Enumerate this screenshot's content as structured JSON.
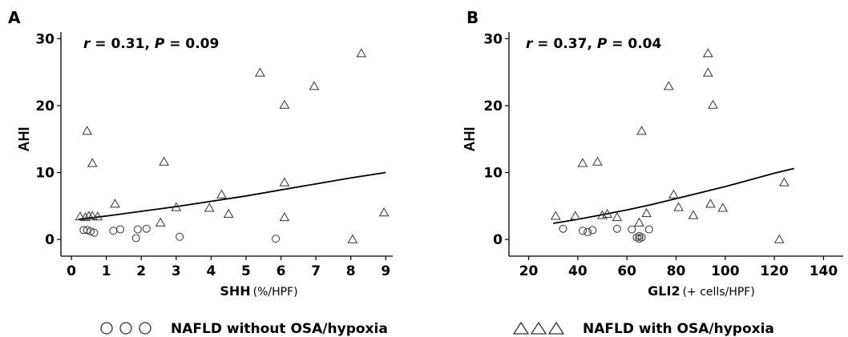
{
  "chart_data": [
    {
      "panel": "A",
      "type": "scatter",
      "stat": {
        "r": "0.31",
        "P": "0.09"
      },
      "xlabel": "SHH",
      "xlabel_unit": "(%/HPF)",
      "ylabel": "AHI",
      "xlim": [
        -0.3,
        9.2
      ],
      "ylim": [
        -2.5,
        31
      ],
      "xticks": [
        0,
        1,
        2,
        3,
        4,
        5,
        6,
        7,
        8,
        9
      ],
      "yticks": [
        0,
        10,
        20,
        30
      ],
      "axis_lines": [
        "left",
        "bottom"
      ],
      "grid": false,
      "series": [
        {
          "marker": "circle",
          "points": [
            [
              0.35,
              1.4
            ],
            [
              0.45,
              1.4
            ],
            [
              0.55,
              1.2
            ],
            [
              0.65,
              1.0
            ],
            [
              1.2,
              1.3
            ],
            [
              1.4,
              1.5
            ],
            [
              1.85,
              0.2
            ],
            [
              1.9,
              1.5
            ],
            [
              2.15,
              1.6
            ],
            [
              3.1,
              0.4
            ],
            [
              5.85,
              0.1
            ]
          ]
        },
        {
          "marker": "triangle",
          "points": [
            [
              0.25,
              3.4
            ],
            [
              0.4,
              3.3
            ],
            [
              0.45,
              16.2
            ],
            [
              0.5,
              3.5
            ],
            [
              0.6,
              3.5
            ],
            [
              0.6,
              11.4
            ],
            [
              0.75,
              3.4
            ],
            [
              1.25,
              5.3
            ],
            [
              2.55,
              2.5
            ],
            [
              2.65,
              11.6
            ],
            [
              3.0,
              4.8
            ],
            [
              3.95,
              4.7
            ],
            [
              4.3,
              6.7
            ],
            [
              4.5,
              3.8
            ],
            [
              5.4,
              24.9
            ],
            [
              6.1,
              20.1
            ],
            [
              6.1,
              3.3
            ],
            [
              6.1,
              8.5
            ],
            [
              6.95,
              22.9
            ],
            [
              8.05,
              0.0
            ],
            [
              8.3,
              27.8
            ],
            [
              8.95,
              4.0
            ]
          ]
        }
      ],
      "trend": [
        [
          0.2,
          3.0
        ],
        [
          1,
          3.5
        ],
        [
          2,
          4.2
        ],
        [
          3,
          4.9
        ],
        [
          4,
          5.7
        ],
        [
          5,
          6.5
        ],
        [
          6,
          7.4
        ],
        [
          7,
          8.3
        ],
        [
          8,
          9.2
        ],
        [
          9,
          10.0
        ]
      ]
    },
    {
      "panel": "B",
      "type": "scatter",
      "stat": {
        "r": "0.37",
        "P": "0.04"
      },
      "xlabel": "GLI2",
      "xlabel_unit": "(+ cells/HPF)",
      "ylabel": "AHI",
      "xlim": [
        12,
        148
      ],
      "ylim": [
        -2.5,
        31
      ],
      "xticks": [
        20,
        40,
        60,
        80,
        100,
        120,
        140
      ],
      "yticks": [
        0,
        10,
        20,
        30
      ],
      "axis_lines": [
        "left",
        "bottom"
      ],
      "grid": false,
      "series": [
        {
          "marker": "circle",
          "points": [
            [
              34,
              1.6
            ],
            [
              42,
              1.3
            ],
            [
              44,
              1.1
            ],
            [
              46,
              1.4
            ],
            [
              56,
              1.6
            ],
            [
              62,
              1.5
            ],
            [
              64,
              0.3
            ],
            [
              65,
              0.1
            ],
            [
              65,
              0.5
            ],
            [
              66,
              0.3
            ],
            [
              69,
              1.5
            ]
          ]
        },
        {
          "marker": "triangle",
          "points": [
            [
              31,
              3.5
            ],
            [
              39,
              3.5
            ],
            [
              42,
              11.4
            ],
            [
              48,
              11.6
            ],
            [
              50,
              3.6
            ],
            [
              52,
              3.8
            ],
            [
              56,
              3.3
            ],
            [
              65,
              2.5
            ],
            [
              66,
              16.2
            ],
            [
              68,
              3.9
            ],
            [
              77,
              22.9
            ],
            [
              79,
              6.7
            ],
            [
              81,
              4.8
            ],
            [
              87,
              3.6
            ],
            [
              93,
              24.9
            ],
            [
              93,
              27.8
            ],
            [
              94,
              5.3
            ],
            [
              95,
              20.1
            ],
            [
              99,
              4.7
            ],
            [
              122,
              0.0
            ],
            [
              124,
              8.5
            ]
          ]
        }
      ],
      "trend": [
        [
          30,
          2.4
        ],
        [
          40,
          3.0
        ],
        [
          50,
          3.7
        ],
        [
          60,
          4.4
        ],
        [
          70,
          5.2
        ],
        [
          80,
          6.1
        ],
        [
          90,
          7.0
        ],
        [
          100,
          7.9
        ],
        [
          110,
          8.9
        ],
        [
          120,
          9.9
        ],
        [
          128,
          10.6
        ]
      ]
    }
  ],
  "legend": [
    {
      "marker": "circle",
      "label": "NAFLD without OSA/hypoxia"
    },
    {
      "marker": "triangle",
      "label": "NAFLD with OSA/hypoxia"
    }
  ]
}
